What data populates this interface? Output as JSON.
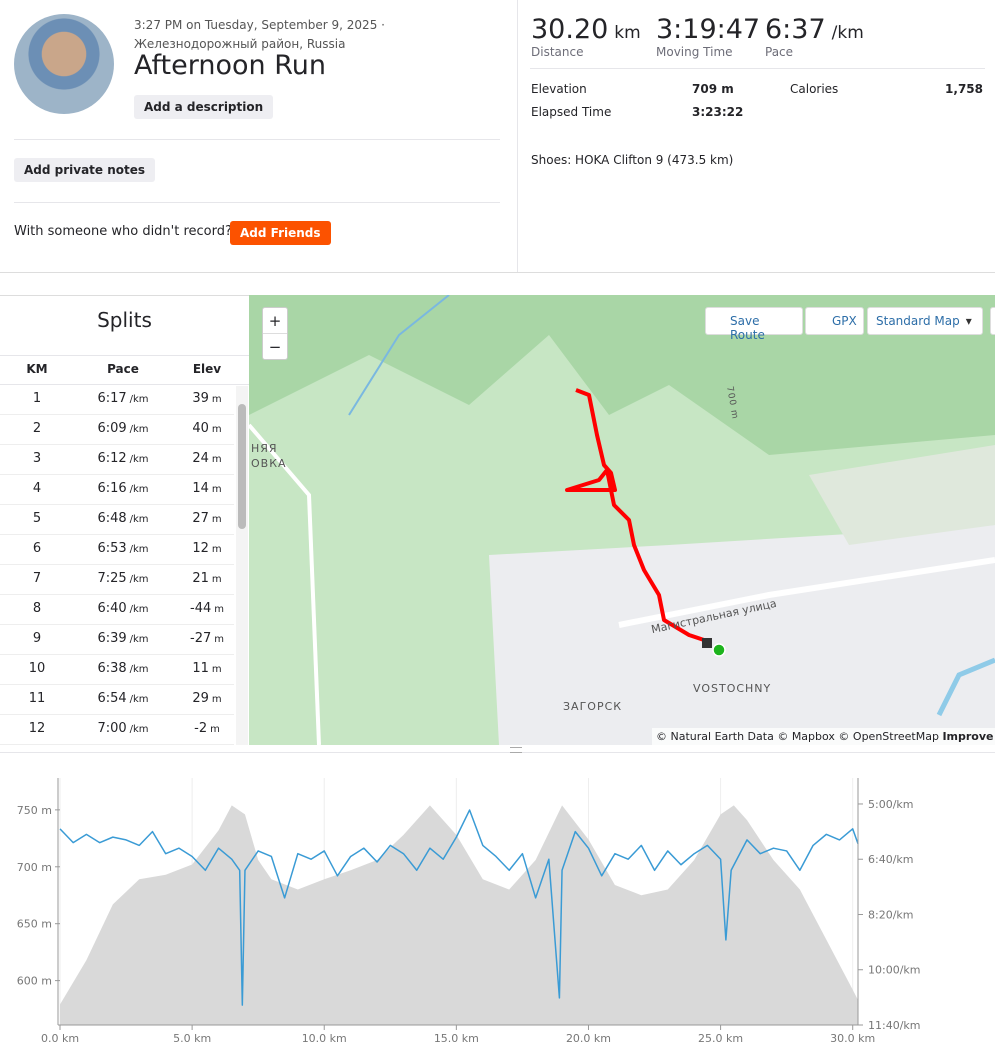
{
  "activity": {
    "datetime": "3:27 PM on Tuesday, September 9, 2025 · Железнодорожный район, Russia",
    "title": "Afternoon Run",
    "add_description": "Add a description",
    "add_private_notes": "Add private notes",
    "with_someone": "With someone who didn't record?",
    "add_friends": "Add Friends"
  },
  "stats": {
    "primary": [
      {
        "value": "30.20",
        "unit": "km",
        "label": "Distance"
      },
      {
        "value": "3:19:47",
        "label": "Moving Time"
      },
      {
        "value": "6:37",
        "unit": "/km",
        "label": "Pace"
      }
    ],
    "elevation": {
      "label": "Elevation",
      "value": "709 m"
    },
    "calories": {
      "label": "Calories",
      "value": "1,758"
    },
    "elapsed": {
      "label": "Elapsed Time",
      "value": "3:23:22"
    },
    "shoes": "Shoes: HOKA Clifton 9 (473.5 km)"
  },
  "splits": {
    "title": "Splits",
    "columns": [
      "KM",
      "Pace",
      "Elev"
    ],
    "pace_unit": "/km",
    "elev_unit": "m",
    "rows": [
      [
        1,
        "6:17",
        39
      ],
      [
        2,
        "6:09",
        40
      ],
      [
        3,
        "6:12",
        24
      ],
      [
        4,
        "6:16",
        14
      ],
      [
        5,
        "6:48",
        27
      ],
      [
        6,
        "6:53",
        12
      ],
      [
        7,
        "7:25",
        21
      ],
      [
        8,
        "6:40",
        -44
      ],
      [
        9,
        "6:39",
        -27
      ],
      [
        10,
        "6:38",
        11
      ],
      [
        11,
        "6:54",
        29
      ],
      [
        12,
        "7:00",
        -2
      ]
    ]
  },
  "map": {
    "zoom_in": "+",
    "zoom_out": "−",
    "save_route": "Save Route",
    "gpx": "GPX",
    "map_style": "Standard Map",
    "labels": [
      "НЯЯ",
      "ОВКА",
      "700 m",
      "Магистральная улица",
      "VOSTOCHNY",
      "ЗАГОРСК"
    ],
    "attribution": "© Natural Earth Data © Mapbox © OpenStreetMap",
    "improve": "Improve thi"
  },
  "chart_data": {
    "type": "area-line",
    "xlim": [
      0,
      30.2
    ],
    "ylim": [
      561,
      778
    ],
    "y2lim": [
      700,
      253
    ],
    "xticks": [
      {
        "value": 0,
        "label": "0.0 km"
      },
      {
        "value": 5,
        "label": "5.0 km"
      },
      {
        "value": 10,
        "label": "10.0 km"
      },
      {
        "value": 15,
        "label": "15.0 km"
      },
      {
        "value": 20,
        "label": "20.0 km"
      },
      {
        "value": 25,
        "label": "25.0 km"
      },
      {
        "value": 30,
        "label": "30.0 km"
      }
    ],
    "yticks": [
      {
        "value": 600,
        "label": "600 m"
      },
      {
        "value": 650,
        "label": "650 m"
      },
      {
        "value": 700,
        "label": "700 m"
      },
      {
        "value": 750,
        "label": "750 m"
      }
    ],
    "y2ticks": [
      {
        "value": 300,
        "label": "5:00/km"
      },
      {
        "value": 400,
        "label": "6:40/km"
      },
      {
        "value": 500,
        "label": "8:20/km"
      },
      {
        "value": 600,
        "label": "10:00/km"
      },
      {
        "value": 700,
        "label": "11:40/km"
      }
    ],
    "series": [
      {
        "kind": "area",
        "color": "#d9d9d9",
        "x": [
          0,
          1,
          2,
          3,
          4,
          5,
          6,
          6.5,
          7,
          7.5,
          8,
          9,
          10,
          11,
          12,
          13,
          14,
          15,
          16,
          17,
          18,
          19,
          20,
          21,
          22,
          23,
          24,
          25,
          25.5,
          26,
          27,
          28,
          29,
          30,
          30.2
        ],
        "values": [
          579,
          618,
          667,
          689,
          693,
          702,
          732,
          754,
          746,
          706,
          689,
          680,
          689,
          697,
          706,
          728,
          754,
          728,
          689,
          680,
          706,
          754,
          724,
          684,
          675,
          680,
          706,
          746,
          754,
          741,
          706,
          680,
          636,
          592,
          583
        ]
      },
      {
        "kind": "line",
        "axis": "y2",
        "color": "#3a9bd5",
        "x": [
          0,
          0.5,
          1,
          1.5,
          2,
          2.5,
          3,
          3.5,
          4,
          4.5,
          5,
          5.5,
          6,
          6.5,
          6.8,
          6.9,
          7,
          7.5,
          8,
          8.5,
          9,
          9.5,
          10,
          10.5,
          11,
          11.5,
          12,
          12.5,
          13,
          13.5,
          14,
          14.5,
          15,
          15.5,
          16,
          16.5,
          17,
          17.5,
          18,
          18.5,
          18.9,
          19,
          19.5,
          20,
          20.5,
          21,
          21.5,
          22,
          22.5,
          23,
          23.5,
          24,
          24.5,
          25,
          25.2,
          25.4,
          26,
          26.5,
          27,
          27.5,
          28,
          28.5,
          29,
          29.5,
          30,
          30.2
        ],
        "values": [
          345,
          370,
          355,
          370,
          360,
          365,
          375,
          350,
          390,
          380,
          395,
          420,
          380,
          400,
          420,
          664,
          420,
          385,
          395,
          470,
          390,
          400,
          385,
          430,
          395,
          380,
          405,
          375,
          390,
          420,
          380,
          400,
          360,
          311,
          375,
          395,
          420,
          390,
          470,
          400,
          651,
          420,
          350,
          380,
          430,
          390,
          400,
          375,
          420,
          385,
          410,
          390,
          375,
          400,
          546,
          420,
          365,
          390,
          380,
          385,
          420,
          375,
          355,
          365,
          345,
          372
        ]
      }
    ]
  }
}
